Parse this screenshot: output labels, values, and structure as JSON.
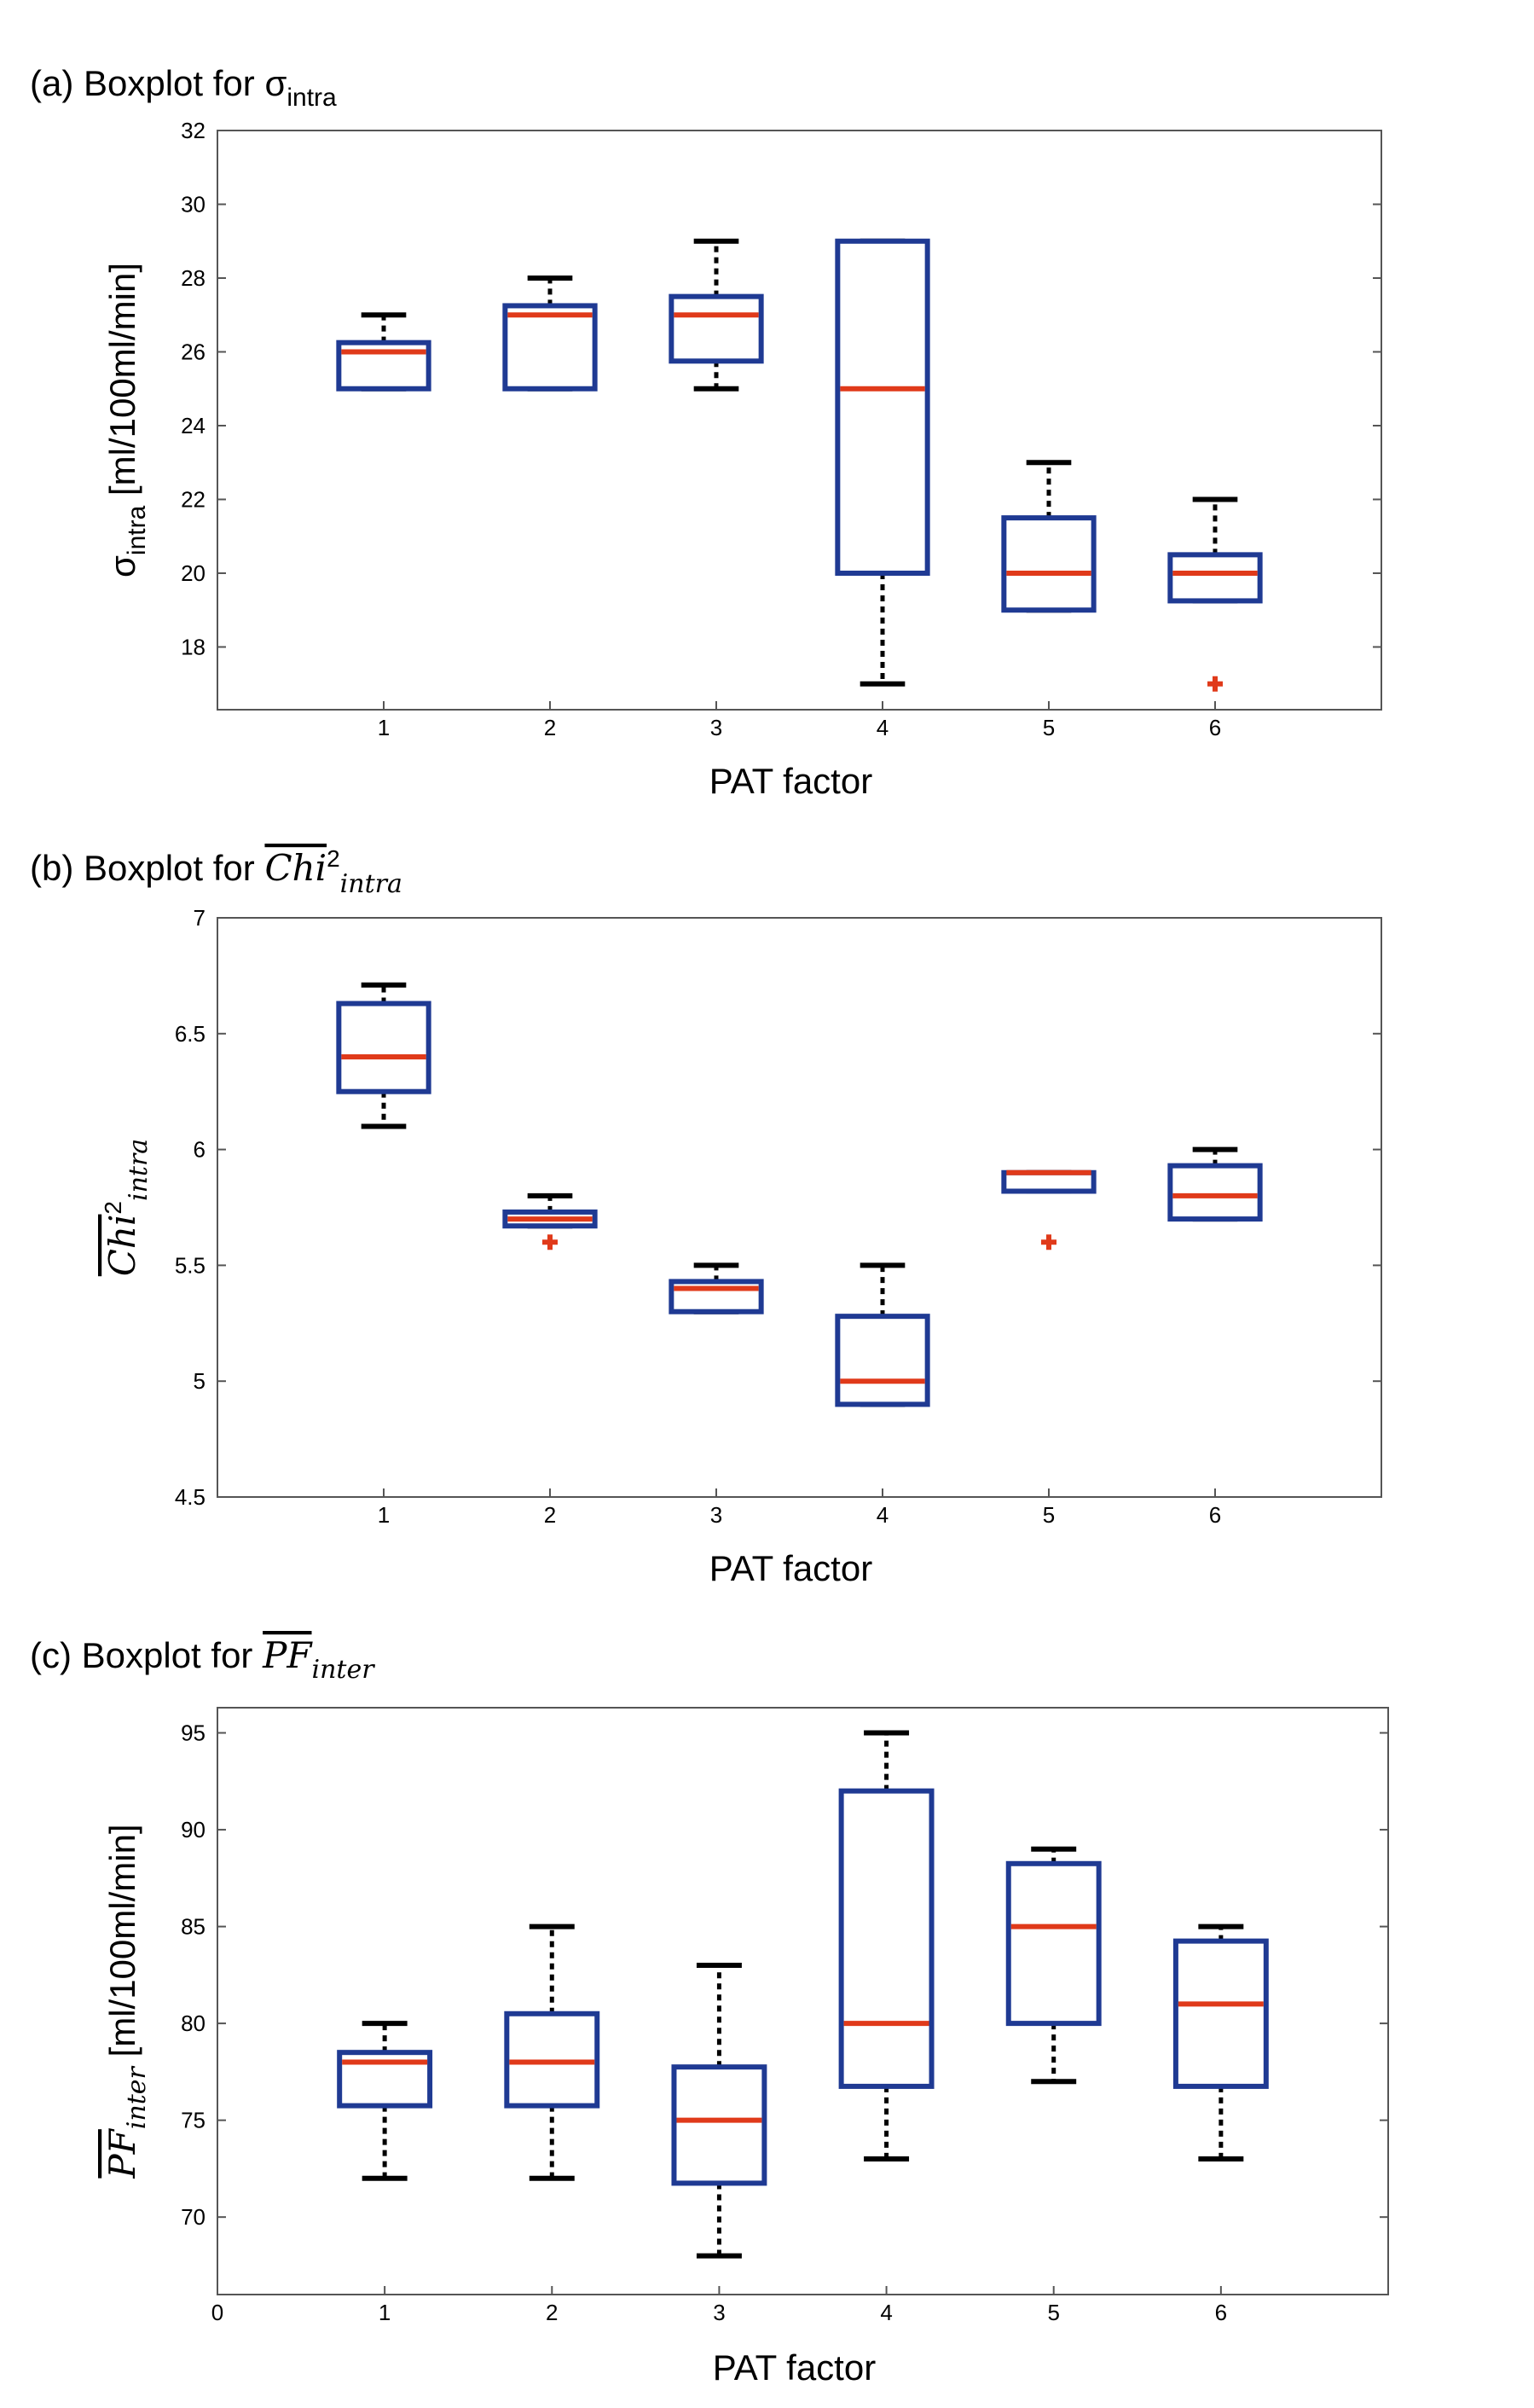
{
  "colors": {
    "box": "#1f3a93",
    "median": "#e03a1a",
    "whisker": "#000000",
    "outlier": "#e03a1a",
    "frame": "#555555"
  },
  "chart_data": [
    {
      "type": "box",
      "panel_label": "(a) Boxplot for ",
      "title_symbol": "σ",
      "title_subscript": "intra",
      "title_overline": false,
      "title_italic": false,
      "ylabel_symbol": "σ",
      "ylabel_subscript": "intra",
      "ylabel_suffix": " [ml/100ml/min]",
      "xlabel": "PAT factor",
      "xlim": [
        0,
        7
      ],
      "ylim": [
        16.3,
        32
      ],
      "xticks": [
        "1",
        "2",
        "3",
        "4",
        "5",
        "6"
      ],
      "yticks": [
        "18",
        "20",
        "22",
        "24",
        "26",
        "28",
        "30",
        "32"
      ],
      "ytick_values": [
        18,
        20,
        22,
        24,
        26,
        28,
        30,
        32
      ],
      "boxes": [
        {
          "x": 1,
          "whisker_low": 25,
          "q1": 25,
          "median": 26,
          "q3": 26.25,
          "whisker_high": 27,
          "outliers": []
        },
        {
          "x": 2,
          "whisker_low": 25,
          "q1": 25,
          "median": 27,
          "q3": 27.25,
          "whisker_high": 28,
          "outliers": []
        },
        {
          "x": 3,
          "whisker_low": 25,
          "q1": 25.75,
          "median": 27,
          "q3": 27.5,
          "whisker_high": 29,
          "outliers": []
        },
        {
          "x": 4,
          "whisker_low": 17,
          "q1": 20,
          "median": 25,
          "q3": 29,
          "whisker_high": 29,
          "outliers": []
        },
        {
          "x": 5,
          "whisker_low": 19,
          "q1": 19,
          "median": 20,
          "q3": 21.5,
          "whisker_high": 23,
          "outliers": []
        },
        {
          "x": 6,
          "whisker_low": 19.25,
          "q1": 19.25,
          "median": 20,
          "q3": 20.5,
          "whisker_high": 22,
          "outliers": [
            17
          ]
        }
      ]
    },
    {
      "type": "box",
      "panel_label": "(b) Boxplot for ",
      "title_symbol": "Chi",
      "title_superscript": "2",
      "title_subscript": "intra",
      "title_overline": true,
      "title_italic": true,
      "ylabel_symbol": "Chi",
      "ylabel_superscript": "2",
      "ylabel_subscript": "intra",
      "ylabel_suffix": "",
      "xlabel": "PAT factor",
      "xlim": [
        0,
        7
      ],
      "ylim": [
        4.5,
        7
      ],
      "xticks": [
        "1",
        "2",
        "3",
        "4",
        "5",
        "6"
      ],
      "yticks": [
        "4.5",
        "5",
        "5.5",
        "6",
        "6.5",
        "7"
      ],
      "ytick_values": [
        4.5,
        5,
        5.5,
        6,
        6.5,
        7
      ],
      "boxes": [
        {
          "x": 1,
          "whisker_low": 6.1,
          "q1": 6.25,
          "median": 6.4,
          "q3": 6.63,
          "whisker_high": 6.71,
          "outliers": []
        },
        {
          "x": 2,
          "whisker_low": 5.67,
          "q1": 5.67,
          "median": 5.7,
          "q3": 5.73,
          "whisker_high": 5.8,
          "outliers": [
            5.6
          ]
        },
        {
          "x": 3,
          "whisker_low": 5.3,
          "q1": 5.3,
          "median": 5.4,
          "q3": 5.43,
          "whisker_high": 5.5,
          "outliers": []
        },
        {
          "x": 4,
          "whisker_low": 4.9,
          "q1": 4.9,
          "median": 5.0,
          "q3": 5.28,
          "whisker_high": 5.5,
          "outliers": []
        },
        {
          "x": 5,
          "whisker_low": 5.82,
          "q1": 5.82,
          "median": 5.9,
          "q3": 5.9,
          "whisker_high": 5.9,
          "outliers": [
            5.6
          ]
        },
        {
          "x": 6,
          "whisker_low": 5.7,
          "q1": 5.7,
          "median": 5.8,
          "q3": 5.93,
          "whisker_high": 6.0,
          "outliers": []
        }
      ]
    },
    {
      "type": "box",
      "panel_label": "(c) Boxplot for ",
      "title_symbol": "PF",
      "title_subscript": "inter",
      "title_overline": true,
      "title_italic": true,
      "ylabel_symbol": "PF",
      "ylabel_subscript": "inter",
      "ylabel_suffix": " [ml/100ml/min]",
      "xlabel": "PAT factor",
      "xlim": [
        0,
        7
      ],
      "ylim": [
        66,
        96.3
      ],
      "xticks": [
        "0",
        "1",
        "2",
        "3",
        "4",
        "5",
        "6"
      ],
      "yticks": [
        "70",
        "75",
        "80",
        "85",
        "90",
        "95"
      ],
      "ytick_values": [
        70,
        75,
        80,
        85,
        90,
        95
      ],
      "boxes": [
        {
          "x": 1,
          "whisker_low": 72,
          "q1": 75.75,
          "median": 78,
          "q3": 78.5,
          "whisker_high": 80,
          "outliers": []
        },
        {
          "x": 2,
          "whisker_low": 72,
          "q1": 75.75,
          "median": 78,
          "q3": 80.5,
          "whisker_high": 85,
          "outliers": []
        },
        {
          "x": 3,
          "whisker_low": 68,
          "q1": 71.75,
          "median": 75,
          "q3": 77.75,
          "whisker_high": 83,
          "outliers": []
        },
        {
          "x": 4,
          "whisker_low": 73,
          "q1": 76.75,
          "median": 80,
          "q3": 92,
          "whisker_high": 95,
          "outliers": []
        },
        {
          "x": 5,
          "whisker_low": 77,
          "q1": 80,
          "median": 85,
          "q3": 88.25,
          "whisker_high": 89,
          "outliers": []
        },
        {
          "x": 6,
          "whisker_low": 73,
          "q1": 76.75,
          "median": 81,
          "q3": 84.25,
          "whisker_high": 85,
          "outliers": []
        }
      ]
    }
  ]
}
